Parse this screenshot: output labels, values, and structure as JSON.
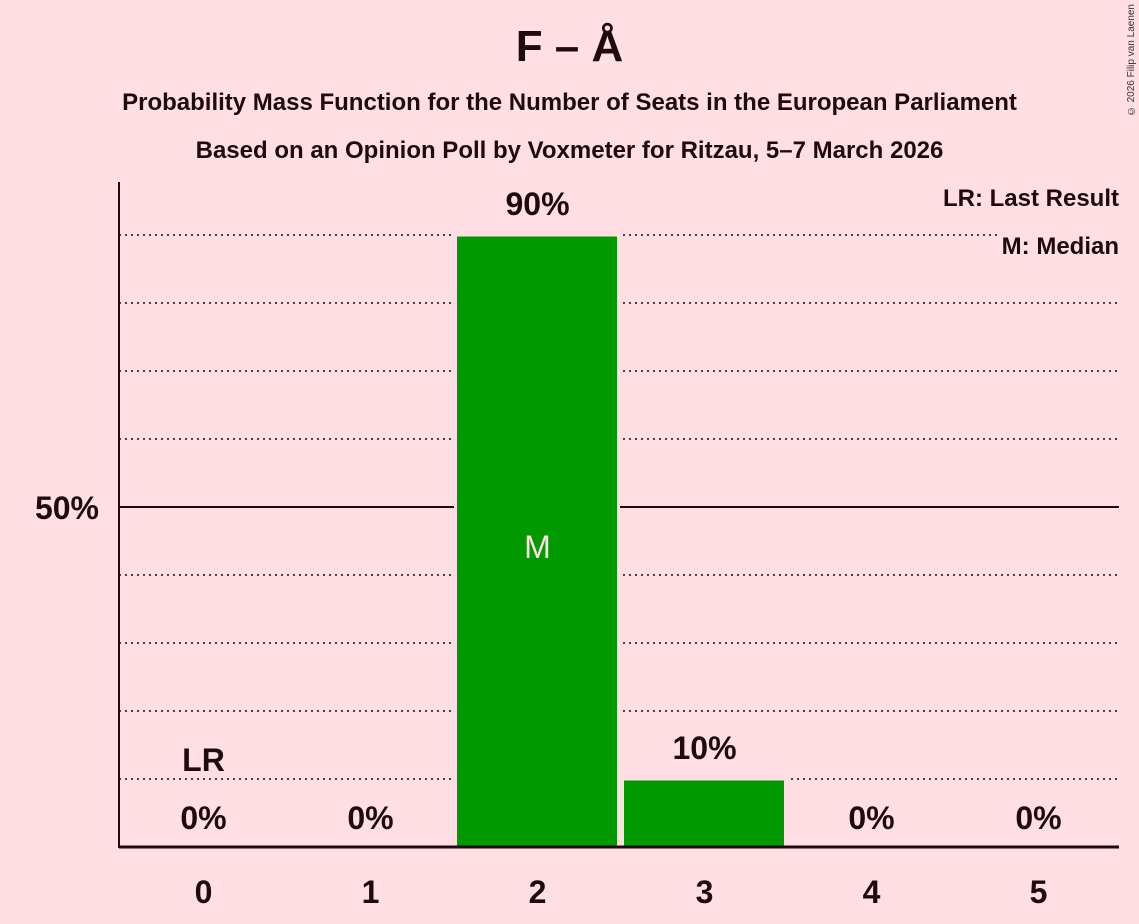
{
  "header": {
    "title": "F – Å",
    "subtitle": "Probability Mass Function for the Number of Seats in the European Parliament",
    "subtitle2": "Based on an Opinion Poll by Voxmeter for Ritzau, 5–7 March 2026",
    "copyright": "© 2026 Filip van Laenen"
  },
  "legend": {
    "lr": "LR: Last Result",
    "m": "M: Median"
  },
  "colors": {
    "background": "#ffdfe4",
    "bar": "#009900",
    "text": "#1f0a0f",
    "median_label": "#ffdfe4"
  },
  "chart_data": {
    "type": "bar",
    "title": "F – Å",
    "subtitle": "Probability Mass Function for the Number of Seats in the European Parliament",
    "xlabel": "",
    "ylabel": "",
    "categories": [
      "0",
      "1",
      "2",
      "3",
      "4",
      "5"
    ],
    "values": [
      0,
      0,
      90,
      10,
      0,
      0
    ],
    "value_labels": [
      "0%",
      "0%",
      "90%",
      "10%",
      "0%",
      "0%"
    ],
    "ylim": [
      0,
      98
    ],
    "yticks": [
      {
        "value": 50,
        "label": "50%"
      }
    ],
    "gridlines": [
      10,
      20,
      30,
      40,
      50,
      60,
      70,
      80,
      90
    ],
    "grid": true,
    "legend_position": "top-right",
    "annotations": [
      {
        "category": "0",
        "label": "LR",
        "meaning": "Last Result"
      },
      {
        "category": "2",
        "label": "M",
        "meaning": "Median"
      }
    ]
  }
}
